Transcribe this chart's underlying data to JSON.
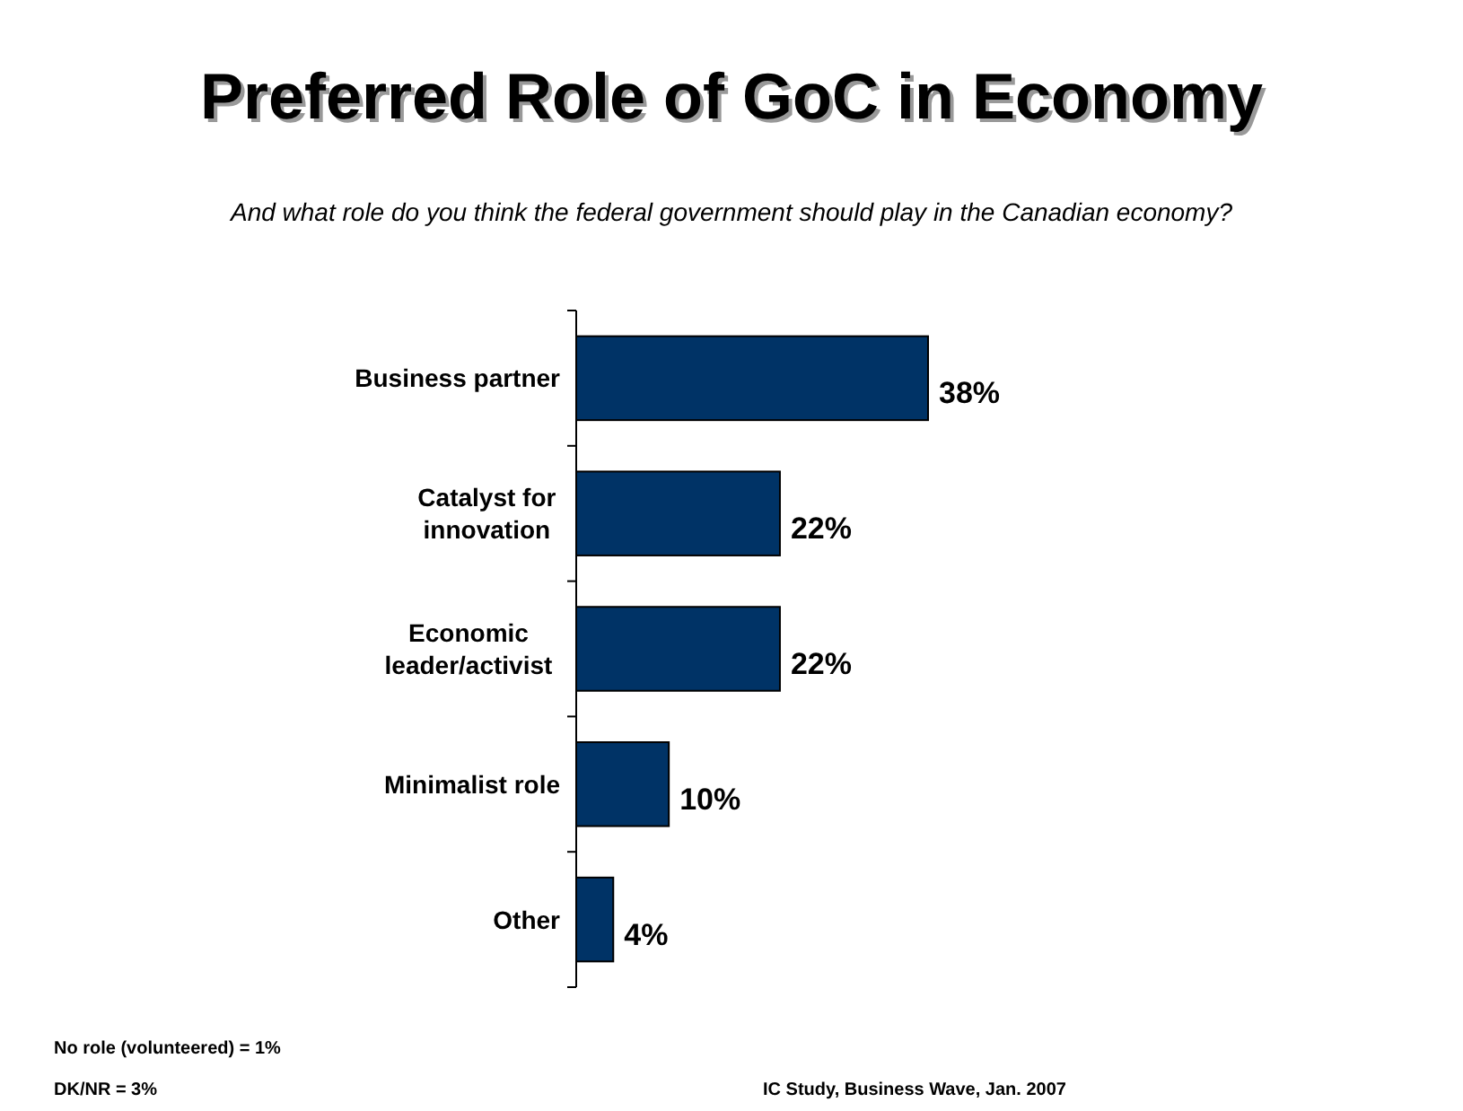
{
  "chart_data": {
    "type": "bar",
    "orientation": "horizontal",
    "title": "Preferred Role of GoC in Economy",
    "subtitle": "And what role do you think the federal government should play in the Canadian economy?",
    "categories": [
      "Business partner",
      "Catalyst for\ninnovation",
      "Economic\nleader/activist",
      "Minimalist role",
      "Other"
    ],
    "values": [
      38,
      22,
      22,
      10,
      4
    ],
    "color": "#003366",
    "data_labels": true,
    "value_labels": [
      "38%",
      "22%",
      "22%",
      "10%",
      "4%"
    ],
    "annotations": [
      "No role (volunteered) = 1%",
      "DK/NR = 3%",
      "IC Study, Business Wave, Jan. 2007"
    ]
  }
}
